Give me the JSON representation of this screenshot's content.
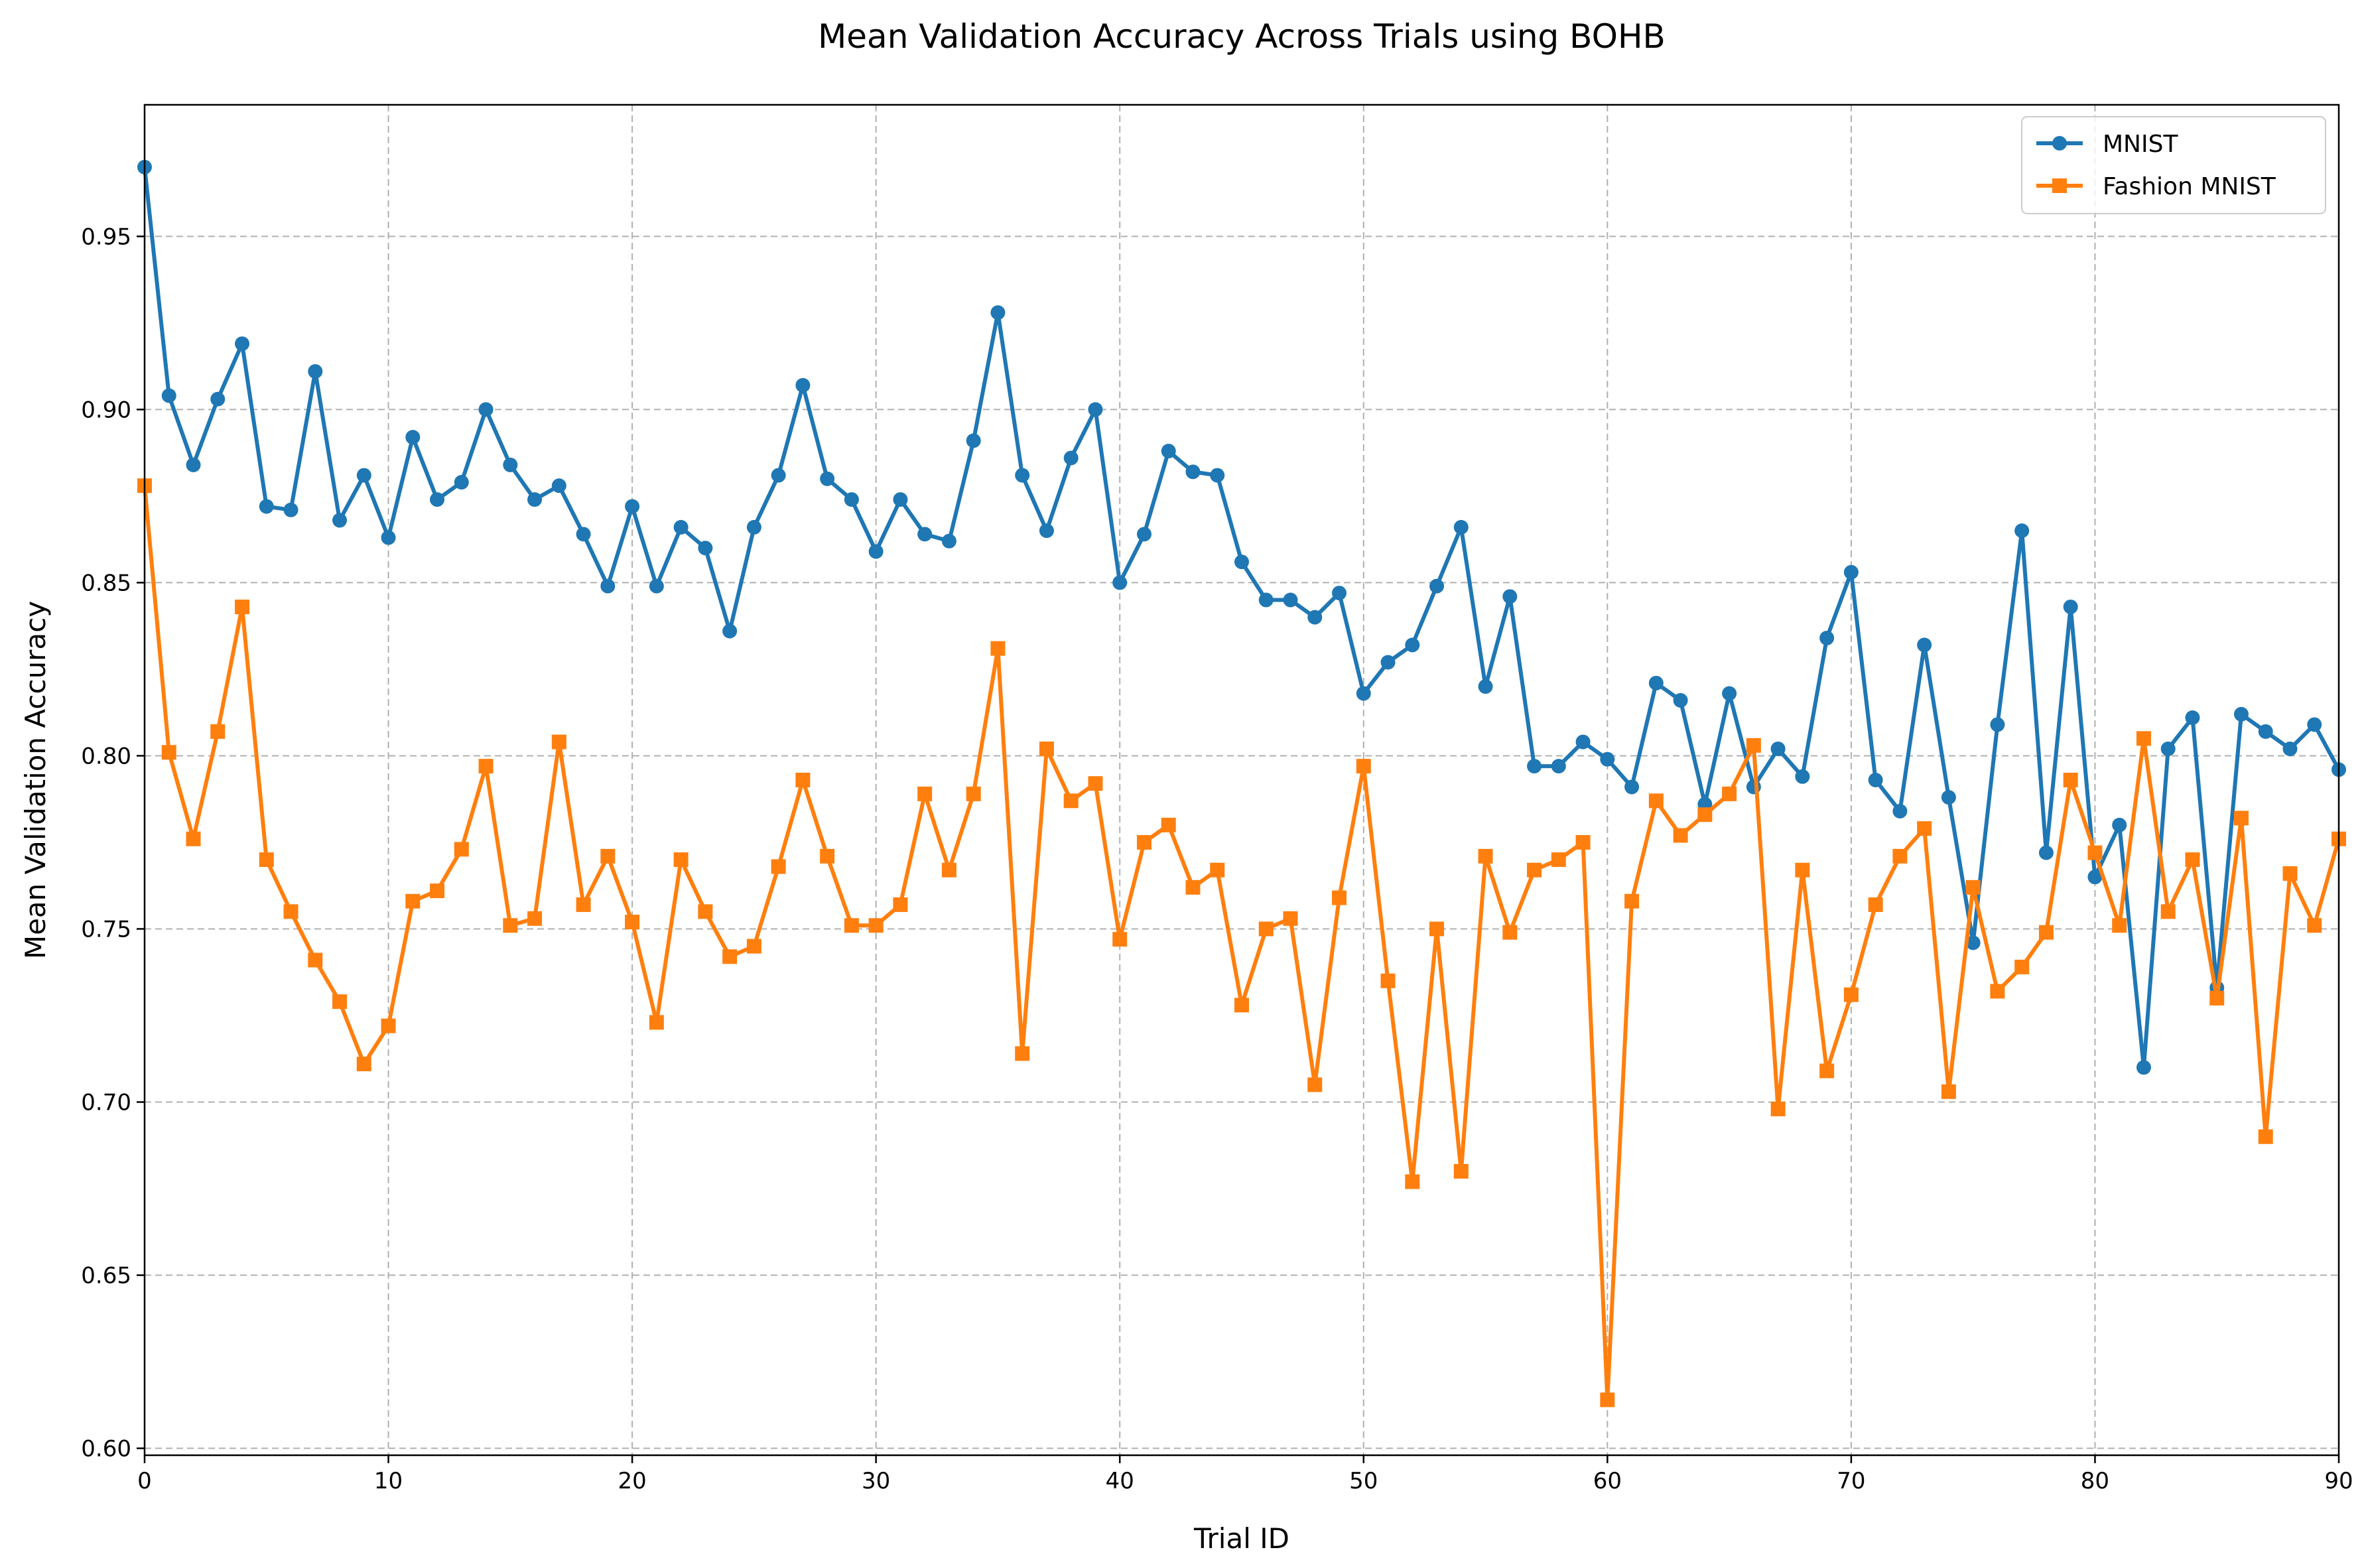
{
  "chart_data": {
    "type": "line",
    "title": "Mean Validation Accuracy Across Trials using BOHB",
    "xlabel": "Trial ID",
    "ylabel": "Mean Validation Accuracy",
    "xlim": [
      0,
      90
    ],
    "ylim": [
      0.598,
      0.988
    ],
    "xticks": [
      0,
      10,
      20,
      30,
      40,
      50,
      60,
      70,
      80,
      90
    ],
    "yticks": [
      0.6,
      0.65,
      0.7,
      0.75,
      0.8,
      0.85,
      0.9,
      0.95
    ],
    "ytick_labels": [
      "0.60",
      "0.65",
      "0.70",
      "0.75",
      "0.80",
      "0.85",
      "0.90",
      "0.95"
    ],
    "grid": true,
    "legend_position": "top-right",
    "series": [
      {
        "name": "MNIST",
        "color": "#1f77b4",
        "marker": "circle",
        "x": [
          0,
          1,
          2,
          3,
          4,
          5,
          6,
          7,
          8,
          9,
          10,
          11,
          12,
          13,
          14,
          15,
          16,
          17,
          18,
          19,
          20,
          21,
          22,
          23,
          24,
          25,
          26,
          27,
          28,
          29,
          30,
          31,
          32,
          33,
          34,
          35,
          36,
          37,
          38,
          39,
          40,
          41,
          42,
          43,
          44,
          45,
          46,
          47,
          48,
          49,
          50,
          51,
          52,
          53,
          54,
          55,
          56,
          57,
          58,
          59,
          60,
          61,
          62,
          63,
          64,
          65,
          66,
          67,
          68,
          69,
          70,
          71,
          72,
          73,
          74,
          75,
          76,
          77,
          78,
          79,
          80,
          81,
          82,
          83,
          84,
          85,
          86,
          87,
          88,
          89,
          90
        ],
        "values": [
          0.97,
          0.904,
          0.884,
          0.903,
          0.919,
          0.872,
          0.871,
          0.911,
          0.868,
          0.881,
          0.863,
          0.892,
          0.874,
          0.879,
          0.9,
          0.884,
          0.874,
          0.878,
          0.864,
          0.849,
          0.872,
          0.849,
          0.866,
          0.86,
          0.836,
          0.866,
          0.881,
          0.907,
          0.88,
          0.874,
          0.859,
          0.874,
          0.864,
          0.862,
          0.891,
          0.928,
          0.881,
          0.865,
          0.886,
          0.9,
          0.85,
          0.864,
          0.888,
          0.882,
          0.881,
          0.856,
          0.845,
          0.845,
          0.84,
          0.847,
          0.818,
          0.827,
          0.832,
          0.849,
          0.866,
          0.82,
          0.846,
          0.797,
          0.797,
          0.804,
          0.799,
          0.791,
          0.821,
          0.816,
          0.786,
          0.818,
          0.791,
          0.802,
          0.794,
          0.834,
          0.853,
          0.793,
          0.784,
          0.832,
          0.788,
          0.746,
          0.809,
          0.865,
          0.772,
          0.843,
          0.765,
          0.78,
          0.71,
          0.802,
          0.811,
          0.733,
          0.812,
          0.807,
          0.802,
          0.809,
          0.796
        ]
      },
      {
        "name": "Fashion MNIST",
        "color": "#ff7f0e",
        "marker": "square",
        "x": [
          0,
          1,
          2,
          3,
          4,
          5,
          6,
          7,
          8,
          9,
          10,
          11,
          12,
          13,
          14,
          15,
          16,
          17,
          18,
          19,
          20,
          21,
          22,
          23,
          24,
          25,
          26,
          27,
          28,
          29,
          30,
          31,
          32,
          33,
          34,
          35,
          36,
          37,
          38,
          39,
          40,
          41,
          42,
          43,
          44,
          45,
          46,
          47,
          48,
          49,
          50,
          51,
          52,
          53,
          54,
          55,
          56,
          57,
          58,
          59,
          60,
          61,
          62,
          63,
          64,
          65,
          66,
          67,
          68,
          69,
          70,
          71,
          72,
          73,
          74,
          75,
          76,
          77,
          78,
          79,
          80,
          81,
          82,
          83,
          84,
          85,
          86,
          87,
          88,
          89,
          90
        ],
        "values": [
          0.878,
          0.801,
          0.776,
          0.807,
          0.843,
          0.77,
          0.755,
          0.741,
          0.729,
          0.711,
          0.722,
          0.758,
          0.761,
          0.773,
          0.797,
          0.751,
          0.753,
          0.804,
          0.757,
          0.771,
          0.752,
          0.723,
          0.77,
          0.755,
          0.742,
          0.745,
          0.768,
          0.793,
          0.771,
          0.751,
          0.751,
          0.757,
          0.789,
          0.767,
          0.789,
          0.831,
          0.714,
          0.802,
          0.787,
          0.792,
          0.747,
          0.775,
          0.78,
          0.762,
          0.767,
          0.728,
          0.75,
          0.753,
          0.705,
          0.759,
          0.797,
          0.735,
          0.677,
          0.75,
          0.68,
          0.771,
          0.749,
          0.767,
          0.77,
          0.775,
          0.614,
          0.758,
          0.787,
          0.777,
          0.783,
          0.789,
          0.803,
          0.698,
          0.767,
          0.709,
          0.731,
          0.757,
          0.771,
          0.779,
          0.703,
          0.762,
          0.732,
          0.739,
          0.749,
          0.793,
          0.772,
          0.751,
          0.805,
          0.755,
          0.77,
          0.73,
          0.782,
          0.69,
          0.766,
          0.751,
          0.776
        ]
      }
    ]
  }
}
